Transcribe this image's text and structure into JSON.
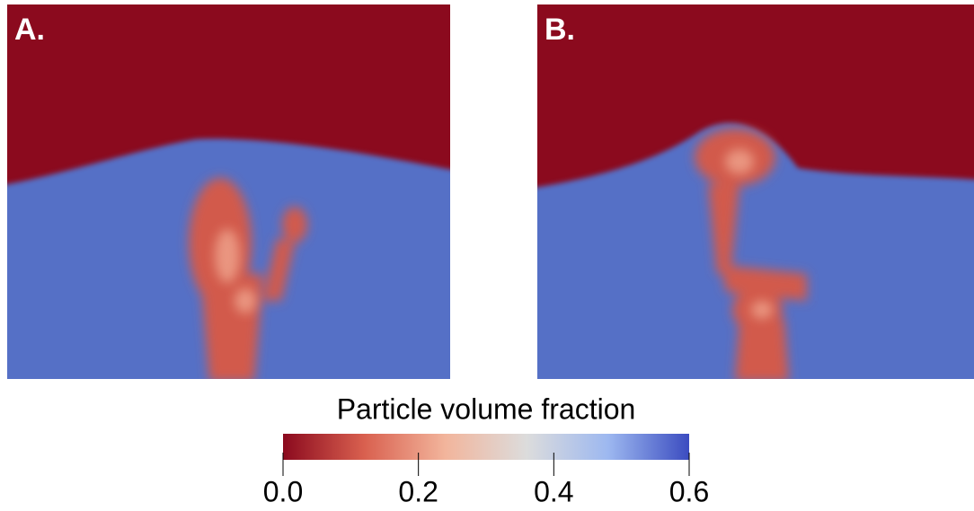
{
  "panels": [
    {
      "label": "A."
    },
    {
      "label": "B."
    }
  ],
  "colorbar": {
    "title": "Particle volume fraction",
    "range": [
      0,
      0.6
    ],
    "colors": [
      "#8b0a1e",
      "#d9604f",
      "#f2b59c",
      "#dcdcdc",
      "#9db8f0",
      "#3b4cc0"
    ],
    "ticks": [
      {
        "value": 0,
        "label": "0.0"
      },
      {
        "value": 0.2,
        "label": "0.2"
      },
      {
        "value": 0.4,
        "label": "0.4"
      },
      {
        "value": 0.6,
        "label": "0.6"
      }
    ]
  }
}
